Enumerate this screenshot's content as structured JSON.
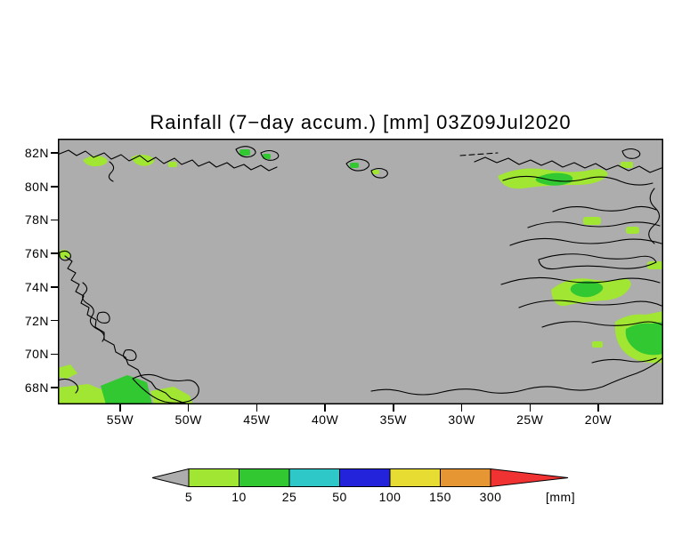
{
  "title": "Rainfall (7−day accum.) [mm] 03Z09Jul2020",
  "map": {
    "background_color": "#adadad",
    "coastline_color": "#000000",
    "y_axis": {
      "labels": [
        "82N",
        "80N",
        "78N",
        "76N",
        "74N",
        "72N",
        "70N",
        "68N"
      ],
      "values": [
        82,
        80,
        78,
        76,
        74,
        72,
        70,
        68
      ]
    },
    "x_axis": {
      "labels": [
        "55W",
        "50W",
        "45W",
        "40W",
        "35W",
        "30W",
        "25W",
        "20W"
      ],
      "values": [
        -55,
        -50,
        -45,
        -40,
        -35,
        -30,
        -25,
        -20
      ]
    }
  },
  "colorbar": {
    "levels": [
      "5",
      "10",
      "25",
      "50",
      "100",
      "150",
      "300"
    ],
    "colors": [
      "#a0e632",
      "#32c832",
      "#2fc8c8",
      "#2323dc",
      "#e6dc32",
      "#e69632"
    ],
    "left_arrow_color": "#adadad",
    "right_arrow_color": "#f03232",
    "unit_label": "[mm]"
  },
  "chart_data": {
    "type": "map",
    "title": "Rainfall (7−day accum.) [mm] 03Z09Jul2020",
    "variable": "Rainfall, 7-day accumulation",
    "units": "mm",
    "valid_time": "03Z09Jul2020",
    "lat_ticks": [
      "68N",
      "70N",
      "72N",
      "74N",
      "76N",
      "78N",
      "80N",
      "82N"
    ],
    "lon_ticks": [
      "55W",
      "50W",
      "45W",
      "40W",
      "35W",
      "30W",
      "25W",
      "20W"
    ],
    "contour_levels_mm": [
      5,
      10,
      25,
      50,
      100,
      150,
      300
    ],
    "rain_areas": [
      {
        "location": "southwest coast near 68N 55W-50W",
        "level_mm": "5-25"
      },
      {
        "location": "northwest coast near 82N",
        "level_mm": "5-10"
      },
      {
        "location": "northeast coast near 80N 30W-25W",
        "level_mm": "5-10"
      },
      {
        "location": "east coast near 74N 25W-20W",
        "level_mm": "5-25"
      },
      {
        "location": "east coast near 70N-71N 20W",
        "level_mm": "10-25"
      }
    ]
  }
}
